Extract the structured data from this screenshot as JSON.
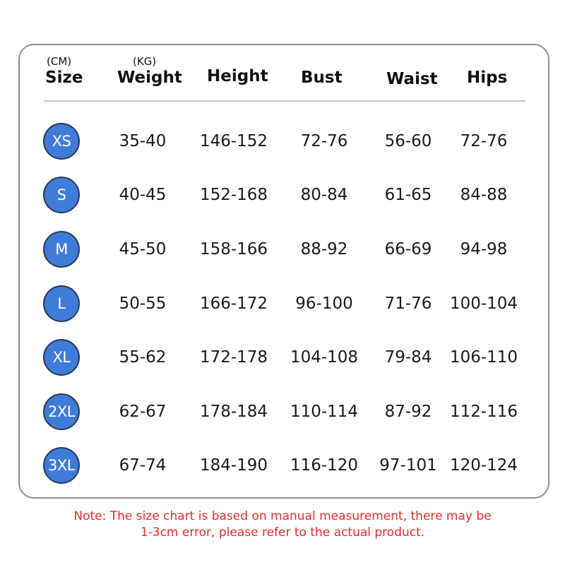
{
  "units": {
    "size_unit": "(CM)",
    "weight_unit": "(KG)"
  },
  "headers": {
    "size": "Size",
    "weight": "Weight",
    "height": "Height",
    "bust": "Bust",
    "waist": "Waist",
    "hips": "Hips"
  },
  "rows": [
    {
      "size": "XS",
      "weight": "35-40",
      "height": "146-152",
      "bust": "72-76",
      "waist": "56-60",
      "hips": "72-76"
    },
    {
      "size": "S",
      "weight": "40-45",
      "height": "152-168",
      "bust": "80-84",
      "waist": "61-65",
      "hips": "84-88"
    },
    {
      "size": "M",
      "weight": "45-50",
      "height": "158-166",
      "bust": "88-92",
      "waist": "66-69",
      "hips": "94-98"
    },
    {
      "size": "L",
      "weight": "50-55",
      "height": "166-172",
      "bust": "96-100",
      "waist": "71-76",
      "hips": "100-104"
    },
    {
      "size": "XL",
      "weight": "55-62",
      "height": "172-178",
      "bust": "104-108",
      "waist": "79-84",
      "hips": "106-110"
    },
    {
      "size": "2XL",
      "weight": "62-67",
      "height": "178-184",
      "bust": "110-114",
      "waist": "87-92",
      "hips": "112-116"
    },
    {
      "size": "3XL",
      "weight": "67-74",
      "height": "184-190",
      "bust": "116-120",
      "waist": "97-101",
      "hips": "120-124"
    }
  ],
  "note": {
    "line1": "Note: The size chart is based on manual measurement, there may be",
    "line2": "1-3cm error, please refer to the actual product."
  },
  "colors": {
    "badge": "#3f7bd8",
    "note": "#e62a2a",
    "border": "#8e8e8e"
  }
}
